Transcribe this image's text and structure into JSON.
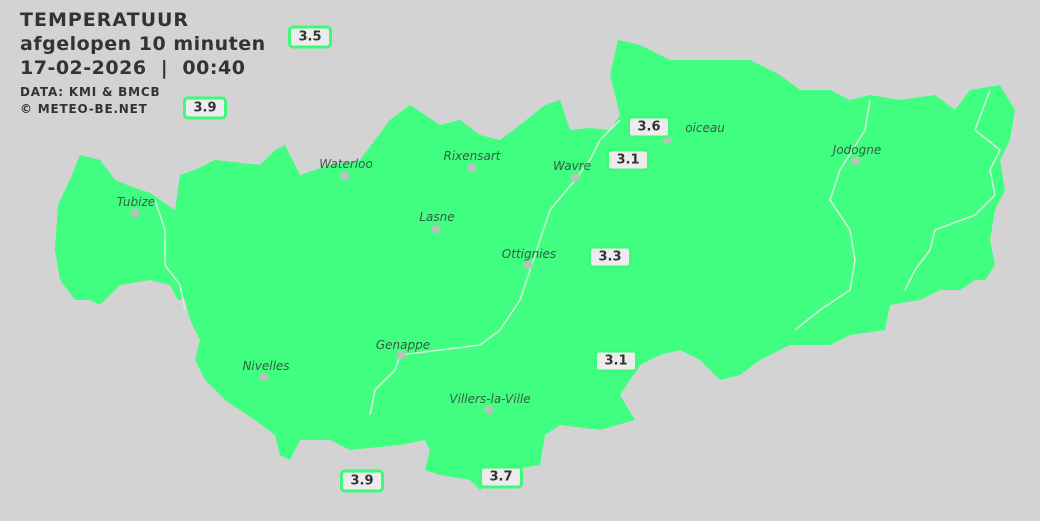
{
  "header": {
    "title": "TEMPERATUUR",
    "subtitle": "afgelopen 10 minuten",
    "datetime": "17-02-2026  |  00:40",
    "source": "DATA: KMI & BMCB",
    "copyright": "© METEO-BE.NET"
  },
  "colors": {
    "background": "#d3d3d3",
    "region_fill": "#40ff80",
    "badge_border": "#3dfa7a",
    "badge_bg": "#ececec"
  },
  "cities": [
    {
      "name": "Waterloo"
    },
    {
      "name": "Rixensart"
    },
    {
      "name": "Wavre"
    },
    {
      "name": "oiceau"
    },
    {
      "name": "Jodogne"
    },
    {
      "name": "Tubize"
    },
    {
      "name": "Lasne"
    },
    {
      "name": "Ottignies"
    },
    {
      "name": "Genappe"
    },
    {
      "name": "Nivelles"
    },
    {
      "name": "Villers-la-Ville"
    }
  ],
  "readings": [
    {
      "value": "3.5"
    },
    {
      "value": "3.9"
    },
    {
      "value": "3.6"
    },
    {
      "value": "3.1"
    },
    {
      "value": "3.3"
    },
    {
      "value": "3.1"
    },
    {
      "value": "3.9"
    },
    {
      "value": "3.7"
    }
  ]
}
